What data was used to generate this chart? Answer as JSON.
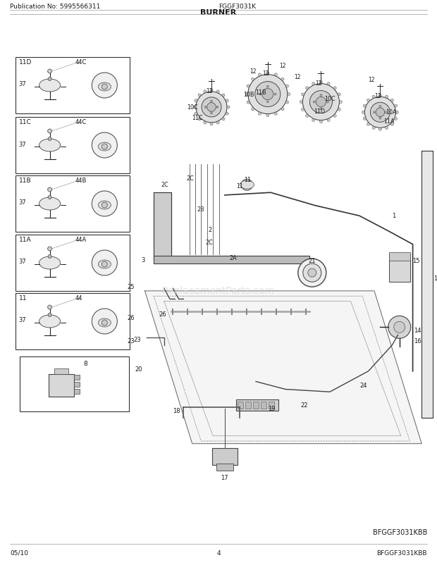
{
  "title": "BURNER",
  "pub_no": "Publication No: 5995566311",
  "model": "FGGF3031K",
  "date": "05/10",
  "page": "4",
  "diagram_code": "BFGGF3031KBB",
  "bg_color": "#ffffff",
  "text_color": "#1a1a1a",
  "figsize": [
    6.2,
    8.03
  ],
  "dpi": 100
}
